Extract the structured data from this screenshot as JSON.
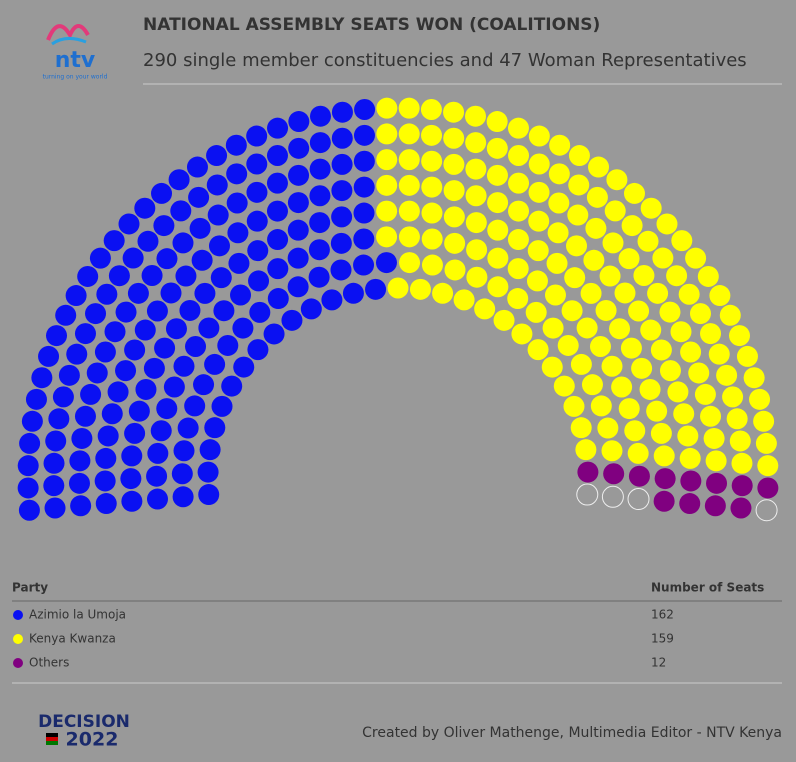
{
  "chart_data": {
    "type": "parliament",
    "title": "NATIONAL ASSEMBLY SEATS WON (COALITIONS)",
    "subtitle": "290 single member constituencies and 47 Woman Representatives",
    "series": [
      {
        "name": "Azimio la Umoja",
        "color": "#0a10f2",
        "values": [
          162
        ]
      },
      {
        "name": "Kenya Kwanza",
        "color": "#ffff00",
        "values": [
          159
        ]
      },
      {
        "name": "Others",
        "color": "#800080",
        "values": [
          12
        ]
      }
    ],
    "vacant_seats": 4,
    "table_headers": [
      "Party",
      "Number of Seats"
    ],
    "credit": "Created by Oliver Mathenge, Multimedia Editor - NTV Kenya",
    "logo": {
      "name": "ntv",
      "tagline": "turning on your world"
    },
    "badge": {
      "word": "DECISION",
      "year": "2022"
    }
  }
}
